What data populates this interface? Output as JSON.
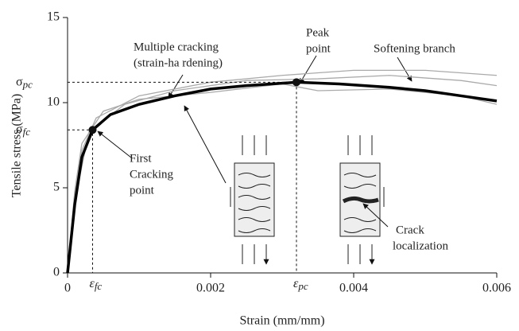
{
  "chart_data": {
    "type": "line",
    "xlabel": "Strain (mm/mm)",
    "ylabel": "Tensile stress (MPa)",
    "xlim": [
      0,
      0.006
    ],
    "ylim": [
      0,
      15
    ],
    "xticks": [
      0,
      0.002,
      0.004,
      0.006
    ],
    "yticks": [
      0,
      5,
      10,
      15
    ],
    "series": [
      {
        "color": "#aaaaaa",
        "x": [
          0,
          0.0001,
          0.0002,
          0.0004,
          0.001,
          0.002,
          0.003,
          0.004,
          0.005,
          0.006
        ],
        "values": [
          0,
          4.5,
          7.2,
          9.1,
          10.4,
          11.2,
          11.6,
          11.9,
          11.9,
          11.6
        ]
      },
      {
        "color": "#aaaaaa",
        "x": [
          0,
          0.0001,
          0.0002,
          0.0005,
          0.001,
          0.002,
          0.003,
          0.0035,
          0.0045,
          0.0055,
          0.006
        ],
        "values": [
          0,
          4.8,
          7.6,
          9.5,
          10.2,
          10.6,
          11.1,
          10.7,
          10.8,
          10.4,
          9.9
        ]
      },
      {
        "color": "#aaaaaa",
        "x": [
          0,
          0.0001,
          0.0003,
          0.0008,
          0.0015,
          0.0025,
          0.0035,
          0.0045,
          0.0055,
          0.006
        ],
        "values": [
          0,
          4.2,
          8.3,
          9.9,
          10.7,
          11.3,
          11.4,
          11.6,
          11.3,
          11.0
        ]
      },
      {
        "color": "#000000",
        "x": [
          0,
          0.0001,
          0.0002,
          0.00035,
          0.0006,
          0.001,
          0.0015,
          0.002,
          0.0025,
          0.0032,
          0.0038,
          0.0045,
          0.005,
          0.0055,
          0.006
        ],
        "values": [
          0,
          4,
          6.8,
          8.4,
          9.3,
          9.9,
          10.4,
          10.8,
          11.0,
          11.2,
          11.1,
          10.9,
          10.7,
          10.4,
          10.1
        ]
      }
    ],
    "key_points": [
      {
        "x_symbol": "ε",
        "x_subscript": "fc",
        "x": 0.00035,
        "y_symbol": "σ",
        "y_subscript": "fc",
        "y": 8.4
      },
      {
        "x_symbol": "ε",
        "x_subscript": "pc",
        "x": 0.0032,
        "y_symbol": "σ",
        "y_subscript": "pc",
        "y": 11.2
      }
    ],
    "annotations": [
      {
        "lines": [
          "Multiple cracking",
          "(strain-ha rdening)"
        ]
      },
      {
        "lines": [
          "Peak",
          "point"
        ]
      },
      {
        "lines": [
          "Softening branch"
        ]
      },
      {
        "lines": [
          "First",
          "Cracking",
          "point"
        ]
      },
      {
        "lines": [
          "Crack",
          "localization"
        ]
      }
    ]
  }
}
